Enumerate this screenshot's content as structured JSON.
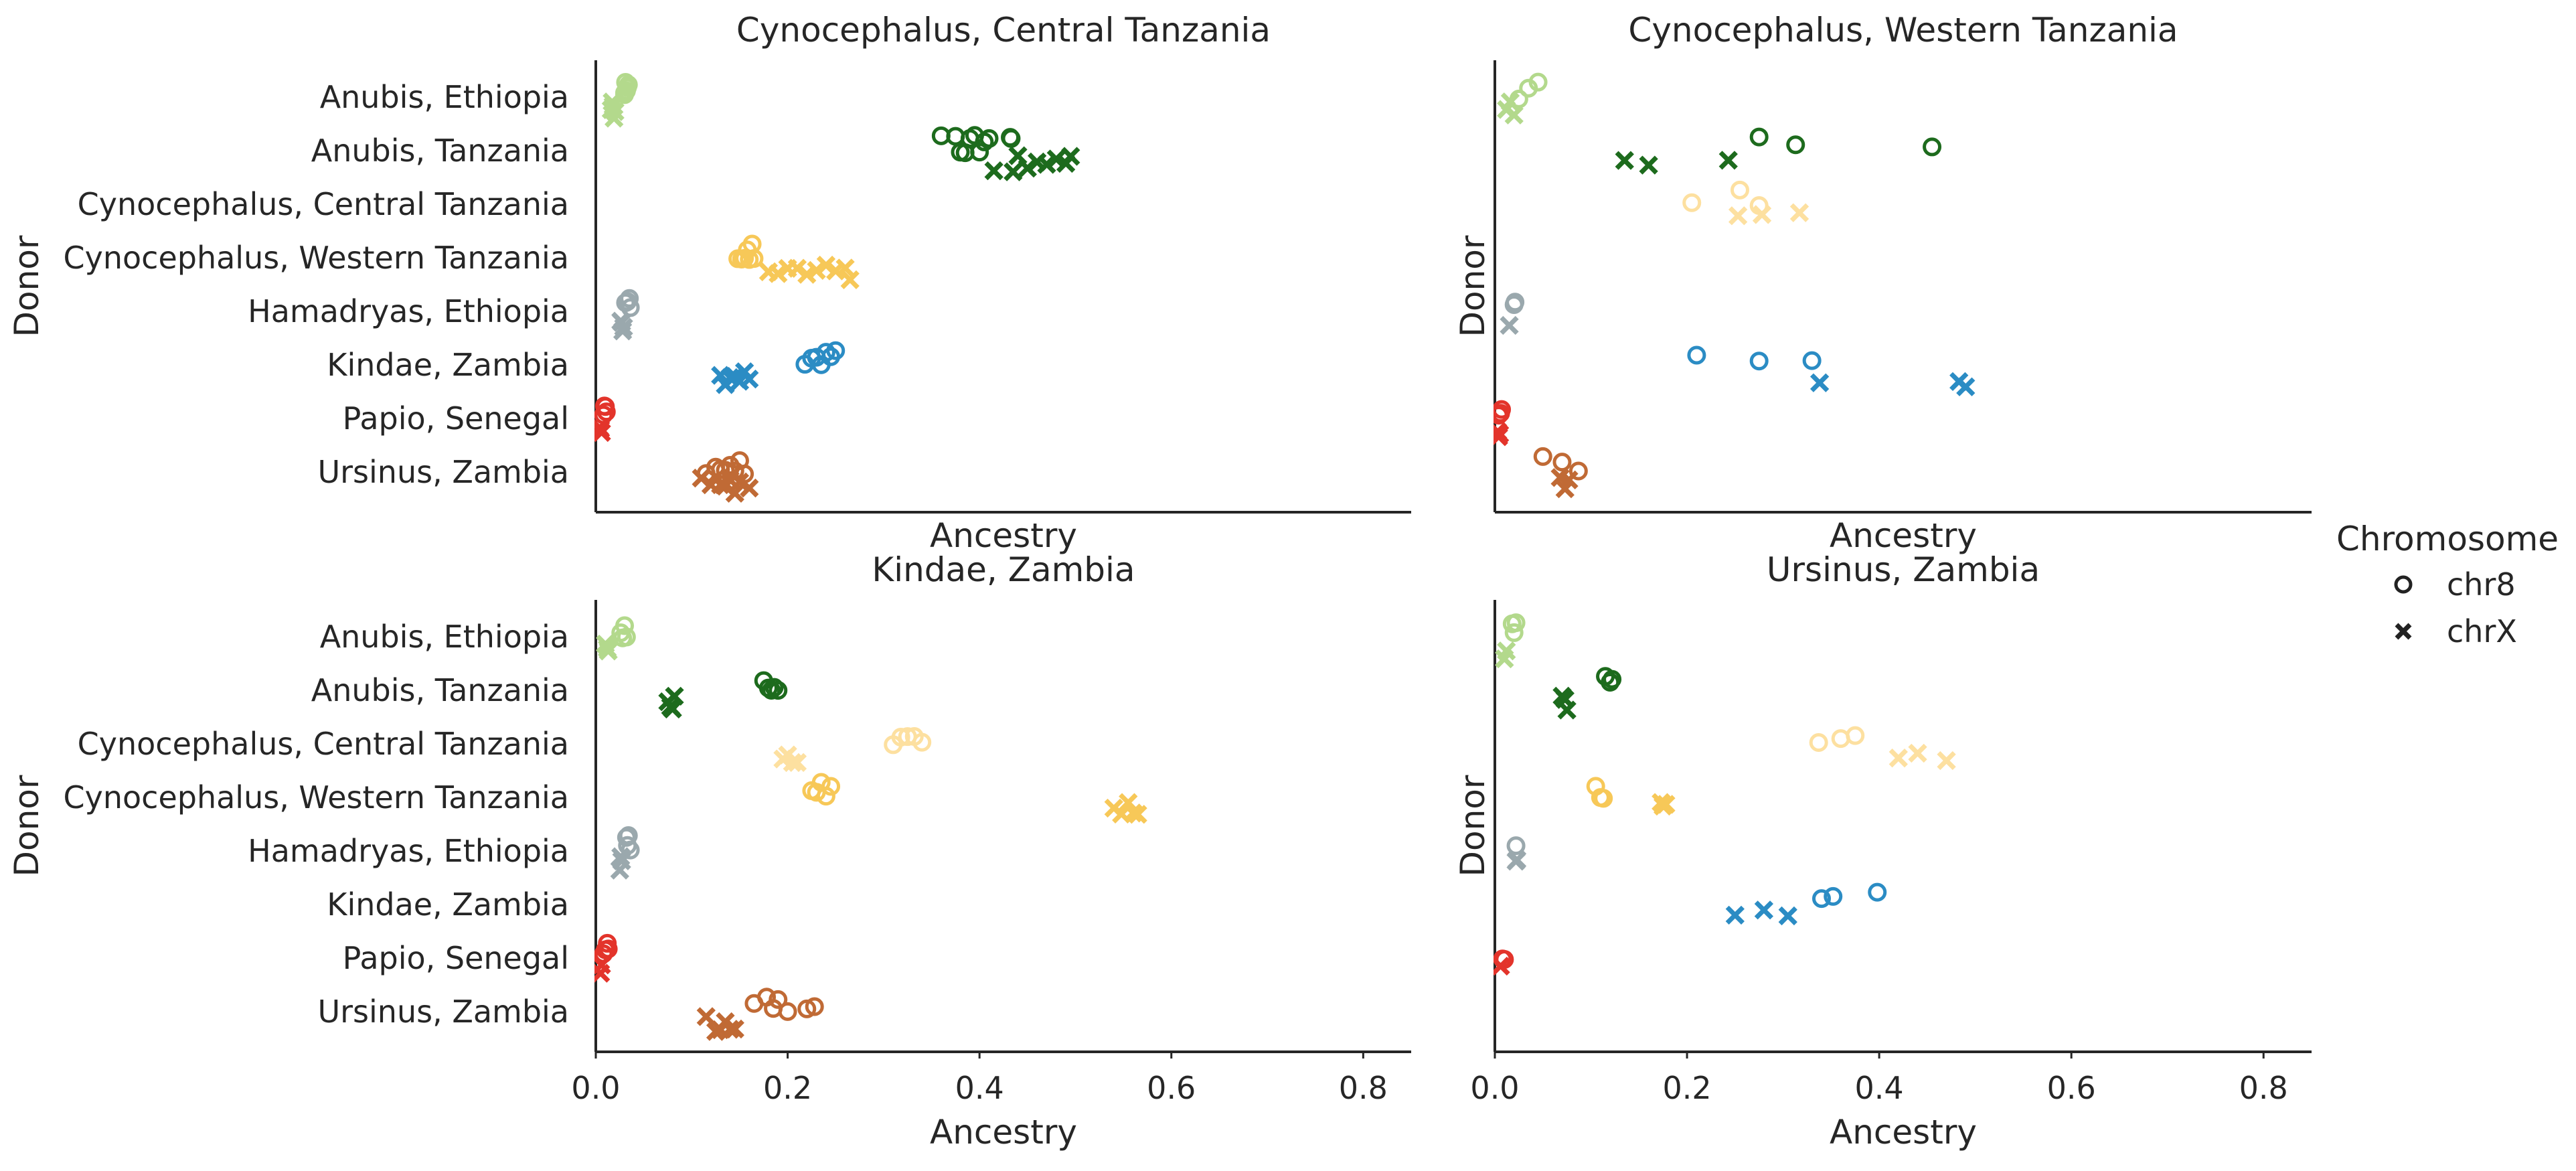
{
  "figure": {
    "x_label": "Ancestry",
    "y_label": "Donor"
  },
  "legend": {
    "title": "Chromosome",
    "entries": [
      {
        "label": "chr8",
        "marker": "o"
      },
      {
        "label": "chrX",
        "marker": "x"
      }
    ]
  },
  "donors": [
    "Anubis, Ethiopia",
    "Anubis, Tanzania",
    "Cynocephalus, Central Tanzania",
    "Cynocephalus, Western Tanzania",
    "Hamadryas, Ethiopia",
    "Kindae, Zambia",
    "Papio, Senegal",
    "Ursinus, Zambia"
  ],
  "colors": {
    "Anubis, Ethiopia": "#b3d98c",
    "Anubis, Tanzania": "#1d6b1d",
    "Cynocephalus, Central Tanzania": "#fde0a0",
    "Cynocephalus, Western Tanzania": "#f7c858",
    "Hamadryas, Ethiopia": "#9aa8ad",
    "Kindae, Zambia": "#2b8cc4",
    "Papio, Senegal": "#e3342b",
    "Ursinus, Zambia": "#c06a35"
  },
  "chart_data": [
    {
      "type": "scatter",
      "title": "Cynocephalus, Central Tanzania",
      "xlabel": "Ancestry",
      "ylabel": "Donor",
      "xlim": [
        0,
        0.85
      ],
      "x_ticks": [],
      "points": {
        "Anubis, Ethiopia": {
          "chr8": [
            0.03,
            0.032,
            0.033,
            0.031,
            0.034,
            0.03
          ],
          "chrX": [
            0.016,
            0.017,
            0.018,
            0.019,
            0.02
          ]
        },
        "Anubis, Tanzania": {
          "chr8": [
            0.36,
            0.375,
            0.38,
            0.385,
            0.39,
            0.395,
            0.4,
            0.405,
            0.41,
            0.433,
            0.432
          ],
          "chrX": [
            0.415,
            0.435,
            0.44,
            0.45,
            0.46,
            0.47,
            0.48,
            0.49,
            0.495
          ]
        },
        "Cynocephalus, Central Tanzania": {
          "chr8": [],
          "chrX": []
        },
        "Cynocephalus, Western Tanzania": {
          "chr8": [
            0.148,
            0.152,
            0.155,
            0.158,
            0.16,
            0.163,
            0.165
          ],
          "chrX": [
            0.18,
            0.19,
            0.2,
            0.21,
            0.22,
            0.23,
            0.24,
            0.25,
            0.26,
            0.265
          ]
        },
        "Hamadryas, Ethiopia": {
          "chr8": [
            0.031,
            0.033,
            0.035,
            0.036
          ],
          "chrX": [
            0.026,
            0.027,
            0.028,
            0.029
          ]
        },
        "Kindae, Zambia": {
          "chr8": [
            0.218,
            0.225,
            0.23,
            0.235,
            0.24,
            0.245,
            0.25
          ],
          "chrX": [
            0.13,
            0.135,
            0.14,
            0.145,
            0.15,
            0.155,
            0.16
          ]
        },
        "Papio, Senegal": {
          "chr8": [
            0.008,
            0.009,
            0.01,
            0.011
          ],
          "chrX": [
            0.004,
            0.005,
            0.006
          ]
        },
        "Ursinus, Zambia": {
          "chr8": [
            0.115,
            0.125,
            0.13,
            0.135,
            0.14,
            0.145,
            0.15,
            0.155
          ],
          "chrX": [
            0.11,
            0.12,
            0.13,
            0.135,
            0.14,
            0.145,
            0.15,
            0.16
          ]
        }
      }
    },
    {
      "type": "scatter",
      "title": "Cynocephalus, Western Tanzania",
      "xlabel": "Ancestry",
      "ylabel": "Donor",
      "xlim": [
        0,
        0.85
      ],
      "x_ticks": [],
      "points": {
        "Anubis, Ethiopia": {
          "chr8": [
            0.025,
            0.035,
            0.045
          ],
          "chrX": [
            0.012,
            0.016,
            0.02
          ]
        },
        "Anubis, Tanzania": {
          "chr8": [
            0.275,
            0.313,
            0.455
          ],
          "chrX": [
            0.135,
            0.16,
            0.243
          ]
        },
        "Cynocephalus, Central Tanzania": {
          "chr8": [
            0.205,
            0.255,
            0.275
          ],
          "chrX": [
            0.253,
            0.278,
            0.317
          ]
        },
        "Cynocephalus, Western Tanzania": {
          "chr8": [],
          "chrX": []
        },
        "Hamadryas, Ethiopia": {
          "chr8": [
            0.02,
            0.021
          ],
          "chrX": [
            0.015
          ]
        },
        "Kindae, Zambia": {
          "chr8": [
            0.21,
            0.275,
            0.33
          ],
          "chrX": [
            0.338,
            0.483,
            0.49
          ]
        },
        "Papio, Senegal": {
          "chr8": [
            0.004,
            0.006,
            0.007
          ],
          "chrX": [
            0.003,
            0.004,
            0.005
          ]
        },
        "Ursinus, Zambia": {
          "chr8": [
            0.05,
            0.07,
            0.087
          ],
          "chrX": [
            0.068,
            0.073,
            0.077
          ]
        }
      }
    },
    {
      "type": "scatter",
      "title": "Kindae, Zambia",
      "xlabel": "Ancestry",
      "ylabel": "Donor",
      "xlim": [
        0,
        0.85
      ],
      "x_ticks": [
        0.0,
        0.2,
        0.4,
        0.6,
        0.8
      ],
      "points": {
        "Anubis, Ethiopia": {
          "chr8": [
            0.026,
            0.028,
            0.03,
            0.032
          ],
          "chrX": [
            0.01,
            0.012,
            0.013
          ]
        },
        "Anubis, Tanzania": {
          "chr8": [
            0.175,
            0.18,
            0.183,
            0.186,
            0.19
          ],
          "chrX": [
            0.075,
            0.078,
            0.08,
            0.082
          ]
        },
        "Cynocephalus, Central Tanzania": {
          "chr8": [
            0.31,
            0.318,
            0.325,
            0.332,
            0.34
          ],
          "chrX": [
            0.195,
            0.2,
            0.205,
            0.21
          ]
        },
        "Cynocephalus, Western Tanzania": {
          "chr8": [
            0.225,
            0.23,
            0.235,
            0.24,
            0.245
          ],
          "chrX": [
            0.54,
            0.548,
            0.555,
            0.56,
            0.565
          ]
        },
        "Hamadryas, Ethiopia": {
          "chr8": [
            0.032,
            0.033,
            0.034,
            0.036
          ],
          "chrX": [
            0.025,
            0.026,
            0.027
          ]
        },
        "Kindae, Zambia": {
          "chr8": [],
          "chrX": []
        },
        "Papio, Senegal": {
          "chr8": [
            0.008,
            0.01,
            0.012,
            0.013
          ],
          "chrX": [
            0.005,
            0.006
          ]
        },
        "Ursinus, Zambia": {
          "chr8": [
            0.165,
            0.178,
            0.185,
            0.19,
            0.2,
            0.22,
            0.228
          ],
          "chrX": [
            0.115,
            0.125,
            0.13,
            0.135,
            0.14,
            0.145
          ]
        }
      }
    },
    {
      "type": "scatter",
      "title": "Ursinus, Zambia",
      "xlabel": "Ancestry",
      "ylabel": "Donor",
      "xlim": [
        0,
        0.85
      ],
      "x_ticks": [
        0.0,
        0.2,
        0.4,
        0.6,
        0.8
      ],
      "points": {
        "Anubis, Ethiopia": {
          "chr8": [
            0.018,
            0.02,
            0.022
          ],
          "chrX": [
            0.01,
            0.012
          ]
        },
        "Anubis, Tanzania": {
          "chr8": [
            0.115,
            0.12,
            0.122
          ],
          "chrX": [
            0.07,
            0.073,
            0.075
          ]
        },
        "Cynocephalus, Central Tanzania": {
          "chr8": [
            0.337,
            0.36,
            0.375
          ],
          "chrX": [
            0.42,
            0.44,
            0.47
          ]
        },
        "Cynocephalus, Western Tanzania": {
          "chr8": [
            0.105,
            0.11,
            0.113
          ],
          "chrX": [
            0.173,
            0.175,
            0.178
          ]
        },
        "Hamadryas, Ethiopia": {
          "chr8": [
            0.022
          ],
          "chrX": [
            0.022,
            0.023
          ]
        },
        "Kindae, Zambia": {
          "chr8": [
            0.34,
            0.352,
            0.398
          ],
          "chrX": [
            0.25,
            0.28,
            0.305
          ]
        },
        "Papio, Senegal": {
          "chr8": [
            0.008,
            0.01
          ],
          "chrX": [
            0.006
          ]
        },
        "Ursinus, Zambia": {
          "chr8": [],
          "chrX": []
        }
      }
    }
  ]
}
